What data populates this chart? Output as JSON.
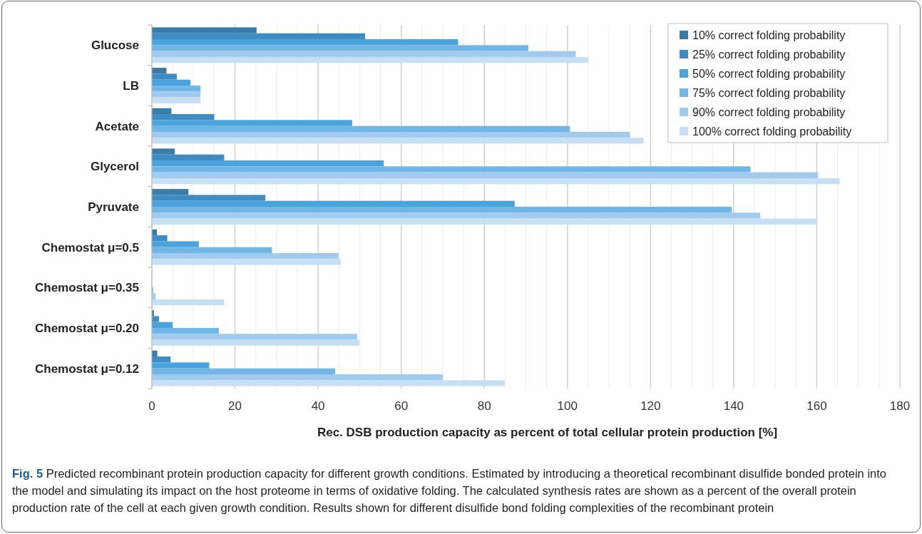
{
  "chart_data": {
    "type": "bar",
    "orientation": "horizontal",
    "categories": [
      "Glucose",
      "LB",
      "Acetate",
      "Glycerol",
      "Pyruvate",
      "Chemostat μ=0.5",
      "Chemostat μ=0.35",
      "Chemostat μ=0.20",
      "Chemostat μ=0.12"
    ],
    "series": [
      {
        "name": "10% correct folding probability",
        "color": "#3a7ca8",
        "values": [
          25.2,
          3.5,
          4.7,
          5.5,
          8.8,
          1.2,
          0,
          0.5,
          1.3
        ]
      },
      {
        "name": "25% correct folding probability",
        "color": "#3f8cc4",
        "values": [
          51.3,
          6,
          15,
          17.4,
          27.3,
          3.7,
          0,
          1.7,
          4.5
        ]
      },
      {
        "name": "50% correct folding probability",
        "color": "#4aa3dc",
        "values": [
          73.7,
          9.3,
          48.2,
          55.8,
          87.3,
          11.3,
          0,
          5,
          13.8
        ]
      },
      {
        "name": "75% correct folding probability",
        "color": "#72b6e7",
        "values": [
          90.6,
          11.7,
          100.6,
          144,
          139.5,
          28.9,
          0.3,
          16.1,
          44.1
        ]
      },
      {
        "name": "90% correct folding probability",
        "color": "#a0cbef",
        "values": [
          102,
          11.7,
          115,
          160.3,
          146.4,
          44.9,
          0.9,
          49.4,
          70
        ]
      },
      {
        "name": "100% correct folding probability",
        "color": "#c6dff5",
        "values": [
          105,
          11.7,
          118.3,
          165.5,
          159.9,
          45.5,
          17.4,
          49.9,
          84.9
        ]
      }
    ],
    "xlabel": "Rec. DSB production capacity as percent of total cellular protein production [%]",
    "xlim": [
      0,
      180
    ],
    "xticks": [
      0,
      {
        "value": 5,
        "label": null
      },
      {
        "value": 10,
        "label": null
      },
      {
        "value": 15,
        "label": null
      },
      20,
      {
        "value": 25,
        "label": null
      },
      {
        "value": 30,
        "label": null
      },
      {
        "value": 35,
        "label": null
      },
      40,
      {
        "value": 45,
        "label": null
      },
      {
        "value": 50,
        "label": null
      },
      {
        "value": 55,
        "label": null
      },
      60,
      {
        "value": 65,
        "label": null
      },
      {
        "value": 70,
        "label": null
      },
      {
        "value": 75,
        "label": null
      },
      80,
      {
        "value": 85,
        "label": null
      },
      {
        "value": 90,
        "label": null
      },
      {
        "value": 95,
        "label": null
      },
      100,
      {
        "value": 105,
        "label": null
      },
      {
        "value": 110,
        "label": null
      },
      {
        "value": 115,
        "label": null
      },
      120,
      {
        "value": 125,
        "label": null
      },
      {
        "value": 130,
        "label": null
      },
      {
        "value": 135,
        "label": null
      },
      140,
      {
        "value": 145,
        "label": null
      },
      {
        "value": 150,
        "label": null
      },
      {
        "value": 155,
        "label": null
      },
      160,
      {
        "value": 165,
        "label": null
      },
      {
        "value": 170,
        "label": null
      },
      {
        "value": 175,
        "label": null
      },
      180
    ],
    "grid": "x",
    "legend": "top right",
    "annotations": [
      "Fig. 5",
      "Predicted recombinant protein production capacity for different growth conditions. Estimated by introducing a theoretical recombinant disulfide bonded protein into the model and simulating its impact on the host proteome in terms of oxidative folding. The calculated synthesis rates are shown as a percent of the overall protein production rate of the cell at each given growth condition. Results shown for different disulfide bond folding complexities of the recombinant protein"
    ]
  }
}
